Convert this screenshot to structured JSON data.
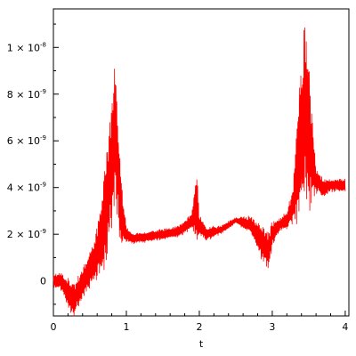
{
  "chart_data": {
    "type": "line",
    "title": "",
    "xlabel": "t",
    "ylabel": "",
    "xlim": [
      0,
      4.05
    ],
    "ylim": [
      -1.5e-09,
      1.165e-08
    ],
    "x_ticks": [
      {
        "value": 0,
        "label": "0"
      },
      {
        "value": 1,
        "label": "1"
      },
      {
        "value": 2,
        "label": "2"
      },
      {
        "value": 3,
        "label": "3"
      },
      {
        "value": 4,
        "label": "4"
      }
    ],
    "y_ticks": [
      {
        "value": 0,
        "mantissa": "0",
        "exponent": ""
      },
      {
        "value": 2e-09,
        "mantissa": "2 × 10",
        "exponent": "-9"
      },
      {
        "value": 4e-09,
        "mantissa": "4 × 10",
        "exponent": "-9"
      },
      {
        "value": 6e-09,
        "mantissa": "6 × 10",
        "exponent": "-9"
      },
      {
        "value": 8e-09,
        "mantissa": "8 × 10",
        "exponent": "-9"
      },
      {
        "value": 1e-08,
        "mantissa": "1 × 10",
        "exponent": "-8"
      }
    ],
    "grid": false,
    "legend": "none",
    "series": [
      {
        "color": "#ff0000",
        "x": [
          0.0,
          0.1,
          0.2,
          0.28,
          0.35,
          0.45,
          0.55,
          0.65,
          0.72,
          0.8,
          0.84,
          0.88,
          0.93,
          1.0,
          1.1,
          1.3,
          1.5,
          1.7,
          1.8,
          1.9,
          1.96,
          2.0,
          2.1,
          2.3,
          2.5,
          2.7,
          2.85,
          2.95,
          3.0,
          3.1,
          3.2,
          3.28,
          3.35,
          3.45,
          3.5,
          3.6,
          3.7,
          3.8,
          3.9,
          4.0
        ],
        "y": [
          0.0,
          0.0,
          -5e-10,
          -8e-10,
          -4e-10,
          2e-10,
          8e-10,
          1.8e-09,
          3e-09,
          5e-09,
          6.5e-09,
          5e-09,
          3e-09,
          2e-09,
          1.8e-09,
          1.9e-09,
          2e-09,
          2.1e-09,
          2.3e-09,
          2.6e-09,
          3.3e-09,
          2.4e-09,
          2e-09,
          2.2e-09,
          2.6e-09,
          2.4e-09,
          1.7e-09,
          1.3e-09,
          2e-09,
          2.4e-09,
          2.6e-09,
          3.2e-09,
          5e-09,
          7.5e-09,
          6e-09,
          4.3e-09,
          4e-09,
          4.1e-09,
          4.1e-09,
          4.1e-09
        ],
        "amplitude": [
          3e-10,
          4e-10,
          7e-10,
          8e-10,
          7e-10,
          8e-10,
          1e-09,
          1.5e-09,
          2.5e-09,
          3e-09,
          3e-09,
          2.8e-09,
          1.5e-09,
          4e-10,
          2.5e-10,
          2.5e-10,
          2.5e-10,
          2.5e-10,
          3e-10,
          4e-10,
          1.8e-09,
          5e-10,
          3.5e-10,
          2e-10,
          1.5e-10,
          4e-10,
          8e-10,
          9e-10,
          6e-10,
          3e-10,
          4e-10,
          8e-10,
          3e-09,
          4e-09,
          3.5e-09,
          6e-10,
          4e-10,
          3e-10,
          3e-10,
          3e-10
        ]
      }
    ]
  }
}
